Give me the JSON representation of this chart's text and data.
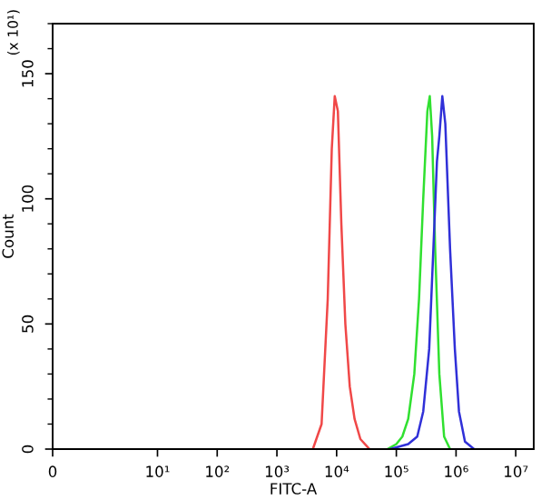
{
  "chart_data": {
    "type": "line",
    "xlabel": "FITC-A",
    "ylabel": "Count",
    "annotations": [
      "(x 10¹)"
    ],
    "log": "x",
    "grid": false,
    "marker": "none",
    "line_style": "solid",
    "xlim": [
      0,
      20000000
    ],
    "xticks": [
      {
        "value": 0,
        "label": "0"
      },
      {
        "value": 10,
        "label": "10¹"
      },
      {
        "value": 100,
        "label": "10²"
      },
      {
        "value": 1000,
        "label": "10³"
      },
      {
        "value": 10000,
        "label": "10⁴"
      },
      {
        "value": 100000,
        "label": "10⁵"
      },
      {
        "value": 1000000,
        "label": "10⁶"
      },
      {
        "value": 10000000,
        "label": "10⁷"
      }
    ],
    "ylim": [
      0,
      170
    ],
    "yticks": [
      0,
      50,
      100,
      150
    ],
    "series": [
      {
        "color": "#f04848",
        "x": [
          4000,
          5600,
          7100,
          8300,
          9300,
          10500,
          12000,
          14000,
          16600,
          20000,
          25000,
          35500
        ],
        "values": [
          0,
          10,
          60,
          120,
          141,
          135,
          90,
          50,
          25,
          12,
          4,
          0
        ]
      },
      {
        "color": "#30e030",
        "x": [
          71000,
          100000,
          126000,
          158000,
          200000,
          240000,
          282000,
          331000,
          363000,
          398000,
          447000,
          525000,
          631000,
          794000
        ],
        "values": [
          0,
          2,
          5,
          12,
          30,
          60,
          100,
          135,
          141,
          125,
          80,
          30,
          5,
          0
        ]
      },
      {
        "color": "#3030d8",
        "x": [
          79000,
          158000,
          224000,
          282000,
          355000,
          417000,
          479000,
          525000,
          589000,
          661000,
          794000,
          955000,
          1120000,
          1410000,
          2000000
        ],
        "values": [
          0,
          2,
          5,
          15,
          40,
          80,
          115,
          125,
          141,
          130,
          80,
          40,
          15,
          3,
          0
        ]
      }
    ]
  }
}
